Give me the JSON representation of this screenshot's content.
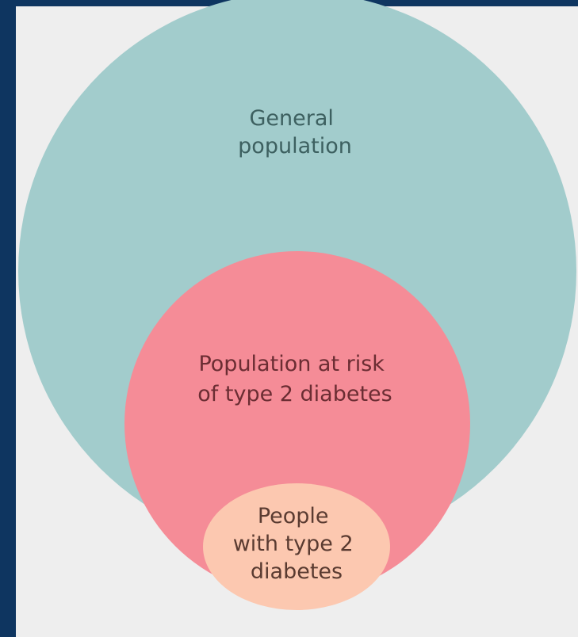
{
  "diagram": {
    "type": "nested-circles",
    "colors": {
      "background": "#0e3560",
      "panel": "#eeeeee",
      "general_population": "#a2cccc",
      "at_risk": "#f58c97",
      "with_diabetes": "#fcc8b0",
      "general_text": "#3d6060",
      "at_risk_text": "#6b2d33",
      "diabetes_text": "#5a3b31"
    },
    "regions": [
      {
        "id": "general",
        "label_lines": [
          "General",
          "population"
        ]
      },
      {
        "id": "at_risk",
        "label_lines": [
          "Population at risk",
          "of type 2 diabetes"
        ]
      },
      {
        "id": "with_diabetes",
        "label_lines": [
          "People",
          "with type 2",
          "diabetes"
        ]
      }
    ]
  }
}
